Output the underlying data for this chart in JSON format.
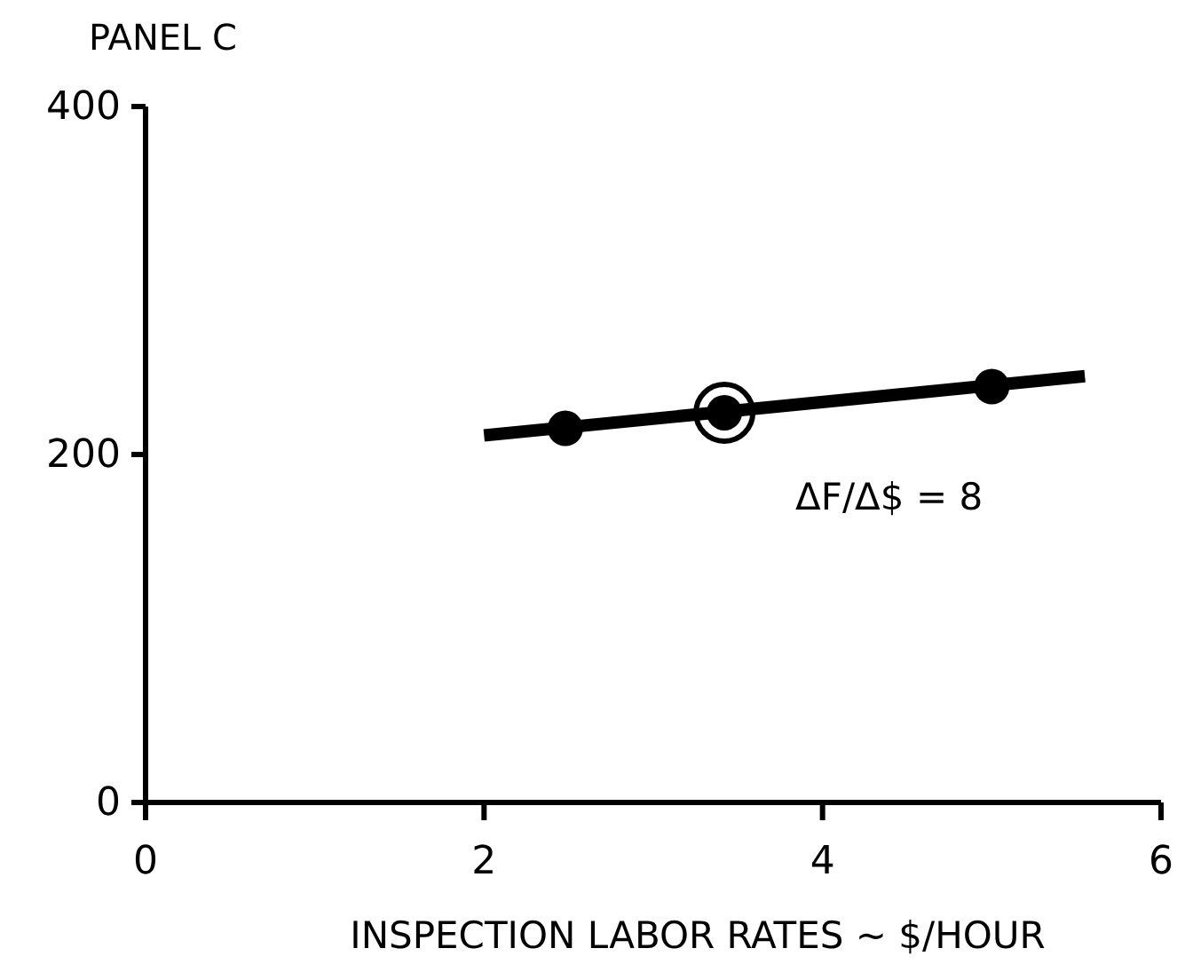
{
  "chart_data": {
    "type": "line",
    "title": "PANEL C",
    "xlabel": "INSPECTION LABOR RATES ~ $/HOUR",
    "xlim": [
      0,
      6
    ],
    "ylim": [
      0,
      400
    ],
    "xticks": [
      0,
      2,
      4,
      6
    ],
    "yticks": [
      0,
      200,
      400
    ],
    "grid": false,
    "annotations": [
      "ΔF/Δ$ = 8"
    ],
    "series": [
      {
        "color": "#000000",
        "x": [
          2.0,
          5.55
        ],
        "values": [
          211,
          245
        ]
      },
      {
        "type": "scatter",
        "color": "#000000",
        "x": [
          2.48,
          3.42,
          5.0
        ],
        "values": [
          215,
          224,
          239
        ],
        "marker": "circle"
      }
    ]
  }
}
